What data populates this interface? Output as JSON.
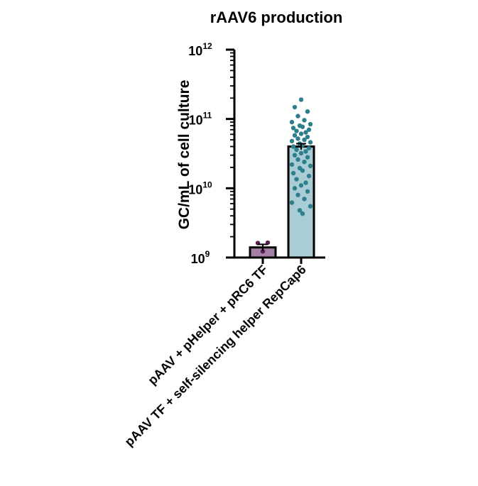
{
  "chart_data": {
    "type": "bar",
    "title": "rAAV6 production",
    "ylabel": "GC/mL of cell culture",
    "xlabel": "",
    "yscale": "log",
    "ylim": [
      1000000000,
      1000000000000
    ],
    "yticks": [
      {
        "base": "10",
        "exp": "9",
        "value": 1000000000
      },
      {
        "base": "10",
        "exp": "10",
        "value": 10000000000
      },
      {
        "base": "10",
        "exp": "11",
        "value": 100000000000
      },
      {
        "base": "10",
        "exp": "12",
        "value": 1000000000000
      }
    ],
    "categories": [
      "pAAV + pHelper + pRC6 TF",
      "pAAV TF + self-silencing helper RepCap6"
    ],
    "values": [
      1400000000,
      40000000000
    ],
    "error_bars": [
      {
        "low": 1250000000,
        "high": 1550000000
      },
      {
        "low": 36000000000,
        "high": 44000000000
      }
    ],
    "colors": {
      "bar_fills": [
        "#a57fa7",
        "#a9ccd5"
      ],
      "point_colors": [
        "#5a1e55",
        "#2e7f8c"
      ]
    },
    "points": [
      [
        1620000000,
        1640000000,
        1230000000
      ],
      [
        190000000000,
        148000000000,
        128000000000,
        110000000000,
        96000000000,
        90000000000,
        84000000000,
        80000000000,
        77000000000,
        74000000000,
        70000000000,
        67000000000,
        64000000000,
        61000000000,
        58000000000,
        55000000000,
        52000000000,
        50000000000,
        48000000000,
        46000000000,
        44000000000,
        42000000000,
        40000000000,
        38000000000,
        36000000000,
        34000000000,
        32000000000,
        30000000000,
        28000000000,
        26000000000,
        24000000000,
        22000000000,
        21000000000,
        19500000000,
        18000000000,
        16500000000,
        15000000000,
        13500000000,
        12000000000,
        11000000000,
        10000000000,
        9000000000,
        8000000000,
        7000000000,
        6200000000,
        5500000000,
        4800000000,
        4300000000
      ]
    ],
    "legend": "none",
    "grid": false
  }
}
